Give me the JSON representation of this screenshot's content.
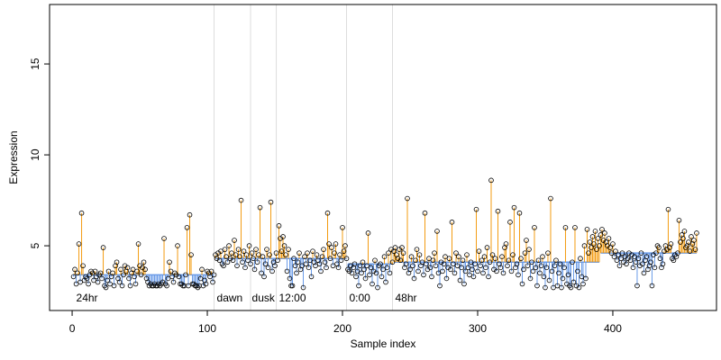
{
  "chart_data": {
    "type": "scatter",
    "x_label": "Sample index",
    "y_label": "Expression",
    "xlim": [
      -16.7,
      476.7
    ],
    "ylim": [
      1.44,
      18.27
    ],
    "xticks": [
      0,
      100,
      200,
      300,
      400
    ],
    "yticks": [
      5,
      10,
      15
    ],
    "point_color": "#000000",
    "above_color": "#f39c12",
    "below_color": "#6a9be8",
    "separator_color": "#dddddd",
    "annotation_color": "#aaaaaa",
    "segment_lines": [
      105,
      132,
      151,
      203,
      237
    ],
    "annotations": [
      {
        "text": "24hr",
        "x": 3,
        "y": 2.1
      },
      {
        "text": "dawn",
        "x": 107,
        "y": 2.1
      },
      {
        "text": "dusk",
        "x": 133,
        "y": 2.1
      },
      {
        "text": "12:00",
        "x": 153,
        "y": 2.1
      },
      {
        "text": "0:00",
        "x": 205,
        "y": 2.1
      },
      {
        "text": "48hr",
        "x": 239,
        "y": 2.1
      }
    ],
    "segments": [
      {
        "start": 1,
        "end": 105,
        "level": 3.4
      },
      {
        "start": 106,
        "end": 132,
        "level": 4.3
      },
      {
        "start": 133,
        "end": 151,
        "level": 4.3
      },
      {
        "start": 152,
        "end": 203,
        "level": 4.3
      },
      {
        "start": 204,
        "end": 237,
        "level": 4.0
      },
      {
        "start": 238,
        "end": 390,
        "level": 4.1
      },
      {
        "start": 391,
        "end": 462,
        "level": 4.6
      }
    ],
    "values": [
      3.3,
      3.7,
      2.9,
      3.5,
      5.1,
      3.0,
      6.8,
      3.9,
      3.1,
      3.3,
      3.2,
      2.9,
      3.4,
      3.6,
      3.5,
      3.1,
      3.6,
      3.3,
      3.0,
      3.4,
      3.5,
      3.2,
      4.9,
      2.8,
      2.7,
      3.1,
      3.6,
      2.9,
      3.3,
      3.5,
      2.8,
      3.9,
      4.1,
      3.2,
      3.0,
      3.7,
      2.8,
      3.4,
      3.9,
      3.6,
      3.8,
      3.2,
      2.8,
      3.5,
      3.7,
      3.3,
      2.9,
      3.6,
      5.1,
      3.9,
      3.4,
      3.8,
      4.1,
      3.7,
      3.2,
      3.0,
      2.8,
      2.9,
      2.8,
      2.8,
      2.9,
      2.8,
      2.8,
      2.9,
      2.8,
      2.9,
      3.0,
      5.4,
      2.9,
      2.8,
      3.2,
      4.1,
      3.6,
      3.3,
      3.0,
      3.5,
      3.4,
      5.0,
      3.3,
      2.9,
      2.9,
      2.8,
      2.8,
      3.4,
      6.0,
      2.8,
      6.7,
      4.5,
      2.9,
      2.9,
      2.8,
      2.8,
      2.7,
      2.8,
      3.2,
      3.7,
      2.8,
      3.1,
      2.9,
      3.6,
      3.5,
      3.3,
      3.6,
      3.0,
      3.4,
      4.5,
      4.3,
      4.6,
      4.2,
      4.7,
      4.0,
      3.9,
      4.8,
      4.4,
      4.1,
      5.0,
      4.3,
      4.6,
      4.2,
      5.3,
      4.5,
      3.9,
      4.8,
      4.4,
      7.5,
      4.1,
      4.7,
      3.8,
      4.5,
      4.2,
      5.0,
      4.0,
      4.6,
      4.3,
      3.7,
      4.8,
      4.1,
      4.5,
      7.1,
      3.5,
      4.4,
      3.3,
      4.0,
      4.8,
      3.8,
      4.5,
      7.4,
      3.6,
      4.1,
      3.9,
      4.6,
      4.2,
      6.1,
      5.4,
      4.7,
      5.5,
      5.0,
      4.5,
      3.6,
      4.8,
      3.2,
      2.8,
      2.8,
      4.3,
      3.9,
      3.5,
      4.1,
      4.6,
      3.7,
      3.9,
      2.7,
      4.4,
      4.0,
      4.6,
      3.8,
      4.2,
      3.3,
      4.7,
      4.1,
      3.9,
      4.5,
      4.2,
      4.0,
      3.6,
      4.4,
      4.8,
      4.1,
      3.8,
      6.8,
      5.1,
      4.3,
      4.9,
      3.9,
      4.6,
      5.1,
      4.0,
      3.8,
      4.5,
      4.2,
      6.0,
      4.7,
      5.0,
      4.3,
      3.7,
      3.6,
      3.9,
      3.5,
      3.8,
      4.0,
      3.3,
      3.6,
      2.8,
      3.9,
      3.5,
      4.1,
      3.7,
      3.2,
      3.9,
      5.7,
      3.4,
      3.8,
      2.9,
      3.6,
      4.2,
      3.5,
      2.7,
      3.9,
      4.0,
      3.3,
      3.7,
      4.4,
      3.0,
      3.8,
      4.6,
      3.5,
      4.8,
      4.1,
      4.7,
      4.9,
      4.5,
      4.3,
      4.8,
      4.2,
      4.9,
      4.6,
      3.8,
      4.0,
      7.6,
      3.5,
      3.7,
      4.4,
      3.9,
      3.2,
      4.2,
      4.8,
      3.6,
      4.5,
      3.9,
      4.1,
      3.4,
      6.8,
      4.0,
      3.7,
      4.3,
      3.8,
      3.3,
      4.2,
      4.6,
      3.9,
      5.8,
      3.5,
      2.8,
      4.1,
      3.6,
      4.0,
      4.4,
      3.2,
      3.8,
      4.3,
      3.7,
      6.3,
      4.0,
      3.5,
      4.6,
      3.9,
      4.4,
      3.1,
      3.8,
      4.2,
      2.9,
      3.6,
      4.5,
      3.8,
      3.4,
      4.1,
      3.7,
      3.3,
      4.0,
      7.0,
      3.6,
      4.7,
      3.9,
      4.2,
      3.5,
      4.4,
      3.8,
      4.9,
      3.3,
      4.1,
      8.6,
      4.5,
      3.7,
      4.3,
      3.6,
      6.9,
      4.0,
      3.8,
      4.4,
      3.5,
      4.9,
      5.1,
      3.9,
      4.2,
      6.3,
      3.6,
      4.5,
      7.1,
      3.8,
      4.0,
      3.4,
      6.8,
      4.3,
      2.9,
      3.7,
      4.6,
      5.3,
      3.9,
      4.8,
      3.2,
      4.1,
      3.6,
      6.0,
      3.8,
      2.8,
      4.2,
      3.5,
      3.9,
      4.4,
      3.3,
      2.7,
      3.8,
      4.6,
      3.1,
      7.6,
      3.6,
      2.7,
      3.9,
      4.2,
      2.8,
      3.5,
      4.0,
      2.7,
      3.2,
      3.8,
      6.0,
      2.9,
      3.4,
      2.8,
      2.7,
      4.1,
      3.0,
      6.0,
      2.8,
      3.6,
      2.7,
      4.3,
      3.3,
      2.9,
      5.0,
      3.2,
      5.9,
      4.6,
      5.2,
      4.9,
      5.5,
      5.1,
      5.8,
      4.8,
      5.4,
      5.0,
      5.6,
      5.9,
      5.3,
      5.7,
      5.2,
      5.0,
      5.4,
      4.9,
      4.6,
      5.1,
      4.4,
      4.7,
      4.2,
      4.5,
      3.9,
      4.3,
      4.6,
      4.1,
      4.4,
      4.0,
      4.3,
      4.6,
      4.2,
      4.5,
      3.8,
      4.4,
      4.1,
      2.8,
      4.3,
      3.9,
      4.6,
      4.0,
      3.5,
      4.2,
      4.4,
      3.7,
      3.9,
      4.1,
      2.8,
      4.5,
      3.8,
      4.6,
      5.0,
      4.9,
      4.3,
      3.8,
      4.0,
      4.7,
      5.0,
      4.8,
      7.0,
      4.9,
      5.1,
      4.3,
      4.2,
      4.5,
      4.4,
      4.6,
      6.4,
      5.2,
      5.6,
      5.4,
      5.8,
      4.9,
      5.0,
      5.2,
      4.7,
      5.5,
      5.1,
      5.3,
      4.8,
      5.7
    ]
  }
}
